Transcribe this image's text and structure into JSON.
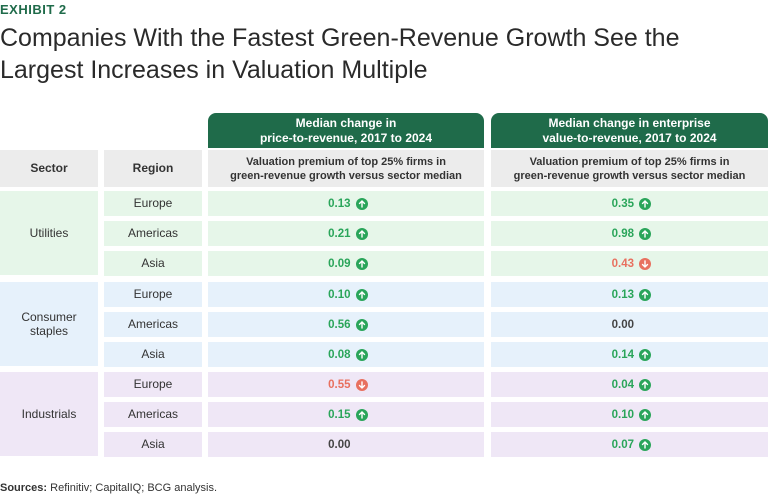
{
  "exhibit_label": "EXHIBIT 2",
  "title": "Companies With the Fastest Green-Revenue Growth See the Largest Increases in Valuation Multiple",
  "sources_label": "Sources:",
  "sources_text": "Refinitiv; CapitalIQ; BCG analysis.",
  "colors": {
    "header_green": "#1f6b4a",
    "positive": "#2aa55a",
    "negative": "#e8705f",
    "neutral": "#444444"
  },
  "chart_data": {
    "type": "table",
    "headers": {
      "sector": "Sector",
      "region": "Region",
      "metric1_line1": "Median change in",
      "metric1_line2": "price-to-revenue, 2017 to 2024",
      "metric2_line1": "Median change in enterprise",
      "metric2_line2": "value-to-revenue, 2017 to 2024",
      "sub1_line1": "Valuation premium of top 25% firms in",
      "sub1_line2": "green-revenue growth versus sector median",
      "sub2_line1": "Valuation premium of top 25% firms in",
      "sub2_line2": "green-revenue growth versus sector median"
    },
    "sectors": [
      {
        "name_line1": "Utilities",
        "name_line2": "",
        "bg": "#e6f6e9",
        "rows": [
          {
            "region": "Europe",
            "p2r": "0.13",
            "p2r_dir": "up",
            "ev2r": "0.35",
            "ev2r_dir": "up"
          },
          {
            "region": "Americas",
            "p2r": "0.21",
            "p2r_dir": "up",
            "ev2r": "0.98",
            "ev2r_dir": "up"
          },
          {
            "region": "Asia",
            "p2r": "0.09",
            "p2r_dir": "up",
            "ev2r": "0.43",
            "ev2r_dir": "down"
          }
        ]
      },
      {
        "name_line1": "Consumer",
        "name_line2": "staples",
        "bg": "#e6f1fb",
        "rows": [
          {
            "region": "Europe",
            "p2r": "0.10",
            "p2r_dir": "up",
            "ev2r": "0.13",
            "ev2r_dir": "up"
          },
          {
            "region": "Americas",
            "p2r": "0.56",
            "p2r_dir": "up",
            "ev2r": "0.00",
            "ev2r_dir": "none"
          },
          {
            "region": "Asia",
            "p2r": "0.08",
            "p2r_dir": "up",
            "ev2r": "0.14",
            "ev2r_dir": "up"
          }
        ]
      },
      {
        "name_line1": "Industrials",
        "name_line2": "",
        "bg": "#efe7f6",
        "rows": [
          {
            "region": "Europe",
            "p2r": "0.55",
            "p2r_dir": "down",
            "ev2r": "0.04",
            "ev2r_dir": "up"
          },
          {
            "region": "Americas",
            "p2r": "0.15",
            "p2r_dir": "up",
            "ev2r": "0.10",
            "ev2r_dir": "up"
          },
          {
            "region": "Asia",
            "p2r": "0.00",
            "p2r_dir": "none",
            "ev2r": "0.07",
            "ev2r_dir": "up"
          }
        ]
      }
    ]
  }
}
